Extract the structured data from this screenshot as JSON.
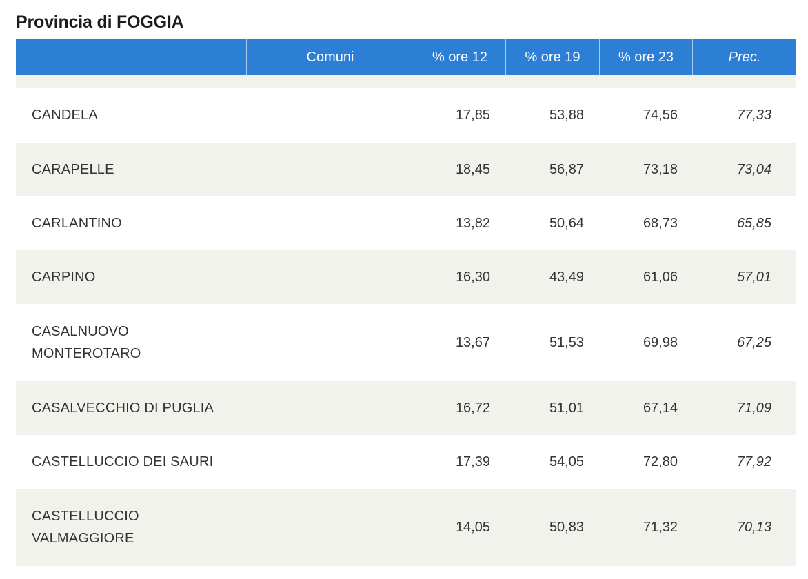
{
  "page": {
    "title": "Provincia di FOGGIA"
  },
  "table": {
    "headers": {
      "blank": "",
      "comuni": "Comuni",
      "ore12": "% ore 12",
      "ore19": "% ore 19",
      "ore23": "% ore 23",
      "prec": "Prec."
    },
    "rows": [
      {
        "name": "CANDELA",
        "ore12": "17,85",
        "ore19": "53,88",
        "ore23": "74,56",
        "prec": "77,33"
      },
      {
        "name": "CARAPELLE",
        "ore12": "18,45",
        "ore19": "56,87",
        "ore23": "73,18",
        "prec": "73,04"
      },
      {
        "name": "CARLANTINO",
        "ore12": "13,82",
        "ore19": "50,64",
        "ore23": "68,73",
        "prec": "65,85"
      },
      {
        "name": "CARPINO",
        "ore12": "16,30",
        "ore19": "43,49",
        "ore23": "61,06",
        "prec": "57,01"
      },
      {
        "name": "CASALNUOVO MONTEROTARO",
        "ore12": "13,67",
        "ore19": "51,53",
        "ore23": "69,98",
        "prec": "67,25"
      },
      {
        "name": "CASALVECCHIO DI PUGLIA",
        "ore12": "16,72",
        "ore19": "51,01",
        "ore23": "67,14",
        "prec": "71,09"
      },
      {
        "name": "CASTELLUCCIO DEI SAURI",
        "ore12": "17,39",
        "ore19": "54,05",
        "ore23": "72,80",
        "prec": "77,92"
      },
      {
        "name": "CASTELLUCCIO VALMAGGIORE",
        "ore12": "14,05",
        "ore19": "50,83",
        "ore23": "71,32",
        "prec": "70,13"
      }
    ]
  },
  "colors": {
    "header_bg": "#2d7fd6",
    "row_shade": "#f2f2ed"
  }
}
